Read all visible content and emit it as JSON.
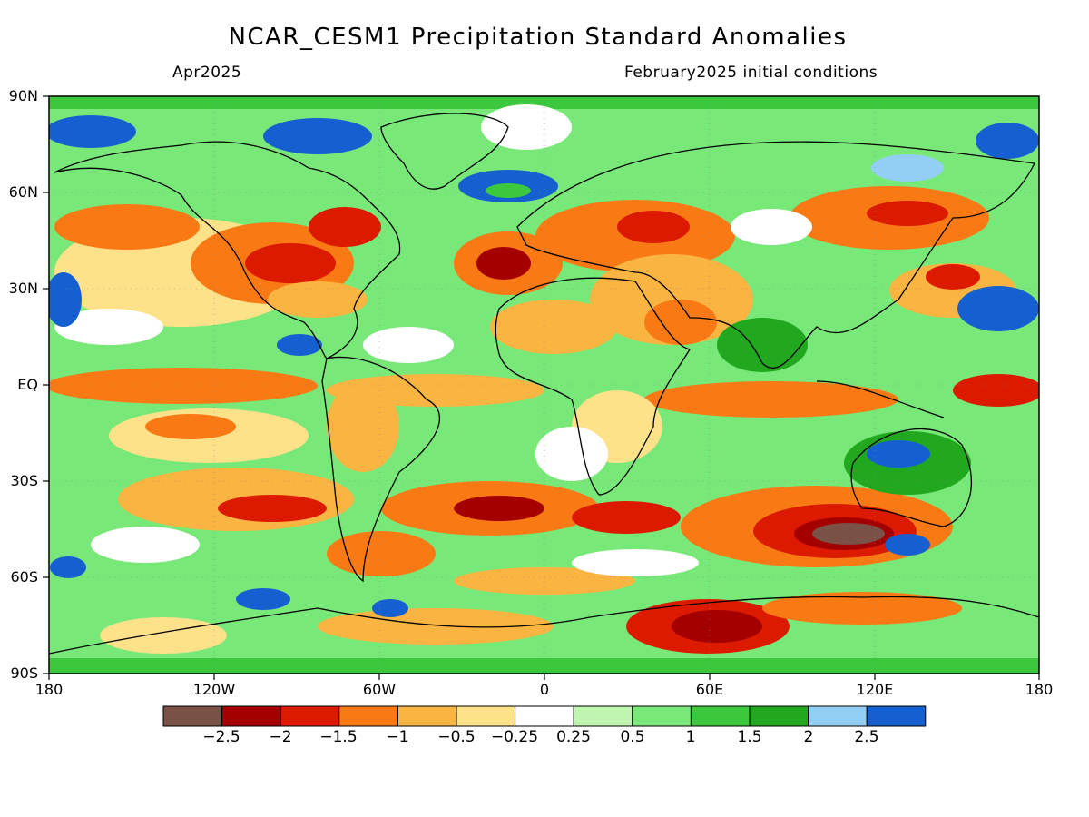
{
  "title": "NCAR_CESM1 Precipitation Standard Anomalies",
  "valid_month": "Apr2025",
  "init_label": "February2025 initial conditions",
  "lat_labels": [
    "90N",
    "60N",
    "30N",
    "EQ",
    "30S",
    "60S",
    "90S"
  ],
  "lon_labels": [
    "180",
    "120W",
    "60W",
    "0",
    "60E",
    "120E",
    "180"
  ],
  "legend": {
    "colors": [
      "#7a5146",
      "#a50000",
      "#dc1a00",
      "#f97a14",
      "#f9b441",
      "#fde28a",
      "#ffffff",
      "#c0f5b0",
      "#78e878",
      "#3cc83c",
      "#22a81e",
      "#93cff5",
      "#1560d0"
    ],
    "labels": [
      "−2.5",
      "−2",
      "−1.5",
      "−1",
      "−0.5",
      "−0.25",
      "0.25",
      "0.5",
      "1",
      "1.5",
      "2",
      "2.5"
    ]
  },
  "colors": {
    "map_background": "#78e878"
  }
}
